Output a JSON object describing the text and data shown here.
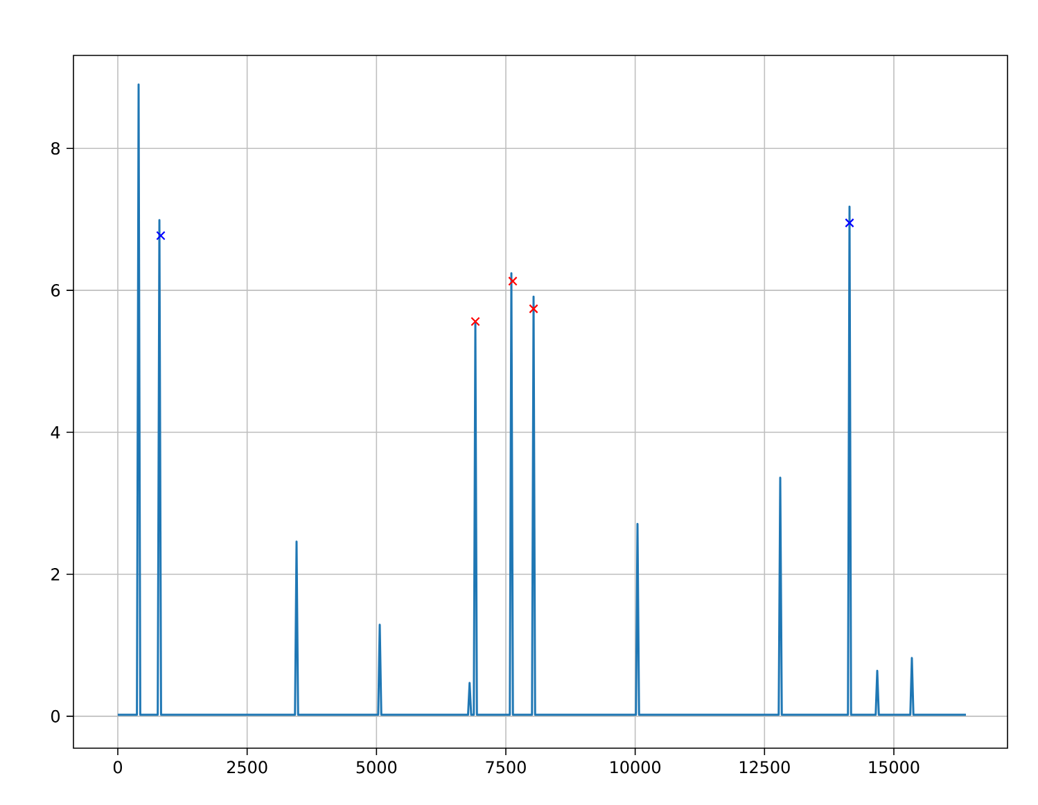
{
  "chart_data": {
    "type": "line",
    "xlim": [
      -857,
      17197
    ],
    "ylim": [
      -0.45,
      9.31
    ],
    "xticks": [
      0,
      2500,
      5000,
      7500,
      10000,
      12500,
      15000
    ],
    "yticks": [
      0,
      2,
      4,
      6,
      8
    ],
    "grid": true,
    "series": [
      {
        "color": "#1f77b4",
        "marker": "none",
        "x": [
          0,
          370,
          402,
          434,
          772,
          804,
          836,
          3425,
          3455,
          3485,
          5033,
          5063,
          5093,
          6770,
          6800,
          6830,
          6881,
          6911,
          6941,
          7577,
          7607,
          7637,
          8006,
          8036,
          8066,
          10015,
          10045,
          10075,
          12774,
          12804,
          12834,
          14113,
          14143,
          14173,
          14649,
          14679,
          14709,
          15318,
          15348,
          15378,
          16393
        ],
        "values": [
          0.02,
          0.02,
          8.9,
          0.02,
          0.02,
          6.99,
          0.02,
          0.02,
          2.46,
          0.02,
          0.02,
          1.29,
          0.02,
          0.02,
          0.47,
          0.02,
          0.02,
          5.54,
          0.02,
          0.02,
          6.24,
          0.02,
          0.02,
          5.91,
          0.02,
          0.02,
          2.71,
          0.02,
          0.02,
          3.36,
          0.02,
          0.02,
          7.18,
          0.02,
          0.02,
          0.64,
          0.02,
          0.02,
          0.82,
          0.02,
          0.02
        ]
      },
      {
        "type": "scatter",
        "color": "#ff0000",
        "marker": "cross",
        "x": [
          6911,
          7634,
          8036
        ],
        "values": [
          5.56,
          6.13,
          5.74
        ]
      },
      {
        "type": "scatter",
        "color": "#0000ff",
        "marker": "cross",
        "x": [
          830,
          14143
        ],
        "values": [
          6.77,
          6.95
        ]
      }
    ]
  }
}
